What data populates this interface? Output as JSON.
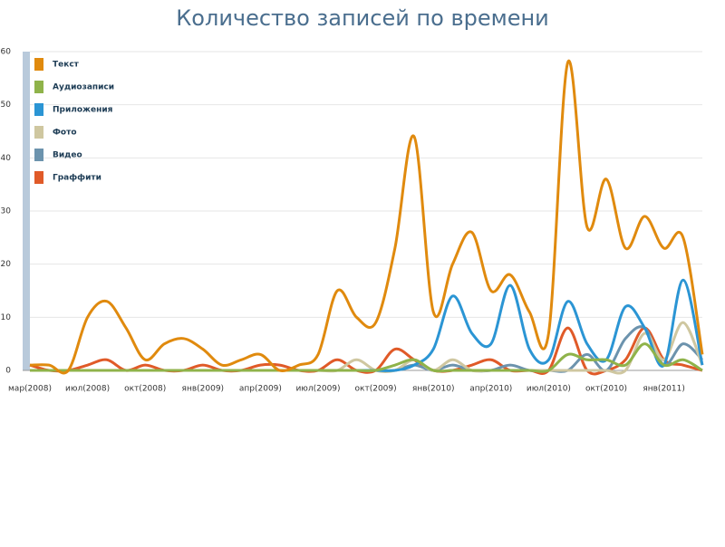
{
  "chart_data": {
    "type": "line",
    "title": "Количество записей по времени",
    "categories": [
      "мар(2008)",
      null,
      null,
      "июл(2008)",
      null,
      null,
      "окт(2008)",
      null,
      null,
      "янв(2009)",
      null,
      null,
      "апр(2009)",
      null,
      null,
      "июл(2009)",
      null,
      null,
      "окт(2009)",
      null,
      null,
      "янв(2010)",
      null,
      null,
      "апр(2010)",
      null,
      null,
      "июл(2010)",
      null,
      null,
      "окт(2010)",
      null,
      null,
      "янв(2011)",
      null,
      null
    ],
    "series": [
      {
        "name": "Текст",
        "color": "#e08a0e",
        "values": [
          1,
          1,
          0,
          10,
          13,
          8,
          2,
          5,
          6,
          4,
          1,
          2,
          3,
          0,
          1,
          3,
          15,
          10,
          9,
          23,
          44,
          11,
          20,
          26,
          15,
          18,
          11,
          7,
          58,
          27,
          36,
          23,
          29,
          23,
          25,
          3
        ]
      },
      {
        "name": "Аудиозаписи",
        "color": "#8fb34a",
        "values": [
          0,
          0,
          0,
          0,
          0,
          0,
          0,
          0,
          0,
          0,
          0,
          0,
          0,
          0,
          0,
          0,
          0,
          0,
          0,
          1,
          2,
          0,
          0,
          0,
          0,
          0,
          0,
          0,
          3,
          2,
          2,
          1,
          5,
          1,
          2,
          0
        ]
      },
      {
        "name": "Приложения",
        "color": "#2b95d4",
        "values": [
          0,
          0,
          0,
          0,
          0,
          0,
          0,
          0,
          0,
          0,
          0,
          0,
          0,
          0,
          0,
          0,
          0,
          0,
          0,
          0,
          1,
          4,
          14,
          7,
          5,
          16,
          4,
          2,
          13,
          5,
          2,
          12,
          8,
          1,
          17,
          1
        ]
      },
      {
        "name": "Фото",
        "color": "#cfc7a0",
        "values": [
          0,
          0,
          0,
          0,
          0,
          0,
          0,
          0,
          0,
          0,
          0,
          0,
          0,
          0,
          0,
          0,
          0,
          2,
          0,
          0,
          2,
          0,
          2,
          0,
          0,
          0,
          0,
          0,
          0,
          0,
          0,
          0,
          7,
          2,
          9,
          1
        ]
      },
      {
        "name": "Видео",
        "color": "#6c93ad",
        "values": [
          0,
          0,
          0,
          0,
          0,
          0,
          0,
          0,
          0,
          0,
          0,
          0,
          0,
          0,
          0,
          0,
          0,
          0,
          0,
          0,
          1,
          0,
          1,
          0,
          0,
          1,
          0,
          0,
          0,
          3,
          0,
          6,
          8,
          1,
          5,
          2
        ]
      },
      {
        "name": "Граффити",
        "color": "#e05a28",
        "values": [
          1,
          0,
          0,
          1,
          2,
          0,
          1,
          0,
          0,
          1,
          0,
          0,
          1,
          1,
          0,
          0,
          2,
          0,
          0,
          4,
          2,
          0,
          0,
          1,
          2,
          0,
          0,
          0,
          8,
          0,
          0,
          2,
          8,
          2,
          1,
          0
        ]
      }
    ],
    "ylim": [
      0,
      60
    ],
    "yticks": [
      0,
      10,
      20,
      30,
      40,
      50,
      60
    ],
    "grid": true,
    "legend": "top-left"
  }
}
